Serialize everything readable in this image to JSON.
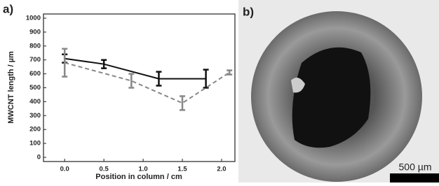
{
  "chart_data": {
    "type": "line",
    "panel_label": "a)",
    "x_label": "Position in column / cm",
    "y_label": "MWCNT  length / µm",
    "xlim": [
      -0.27,
      2.17
    ],
    "ylim": [
      0,
      1000
    ],
    "xticks": [
      {
        "value": 0,
        "label": "0.0"
      },
      {
        "value": 0.5,
        "label": "0.5"
      },
      {
        "value": 1,
        "label": "1.0"
      },
      {
        "value": 1.5,
        "label": "1.5"
      },
      {
        "value": 2,
        "label": "2.0"
      }
    ],
    "yticks": [
      0,
      100,
      200,
      300,
      400,
      500,
      600,
      700,
      800,
      900,
      1000
    ],
    "series": [
      {
        "color": "#111111",
        "dash": false,
        "x": [
          0,
          0.5,
          1.2,
          1.8
        ],
        "values": [
          710,
          670,
          565,
          565
        ],
        "errors": [
          30,
          30,
          50,
          65
        ]
      },
      {
        "color": "#888888",
        "dash": true,
        "x": [
          0,
          0.85,
          1.5,
          2.1
        ],
        "values": [
          680,
          550,
          390,
          610
        ],
        "errors": [
          100,
          50,
          50,
          15
        ]
      }
    ]
  },
  "image": {
    "panel_label": "b)",
    "scale_bar": "500 µm"
  }
}
